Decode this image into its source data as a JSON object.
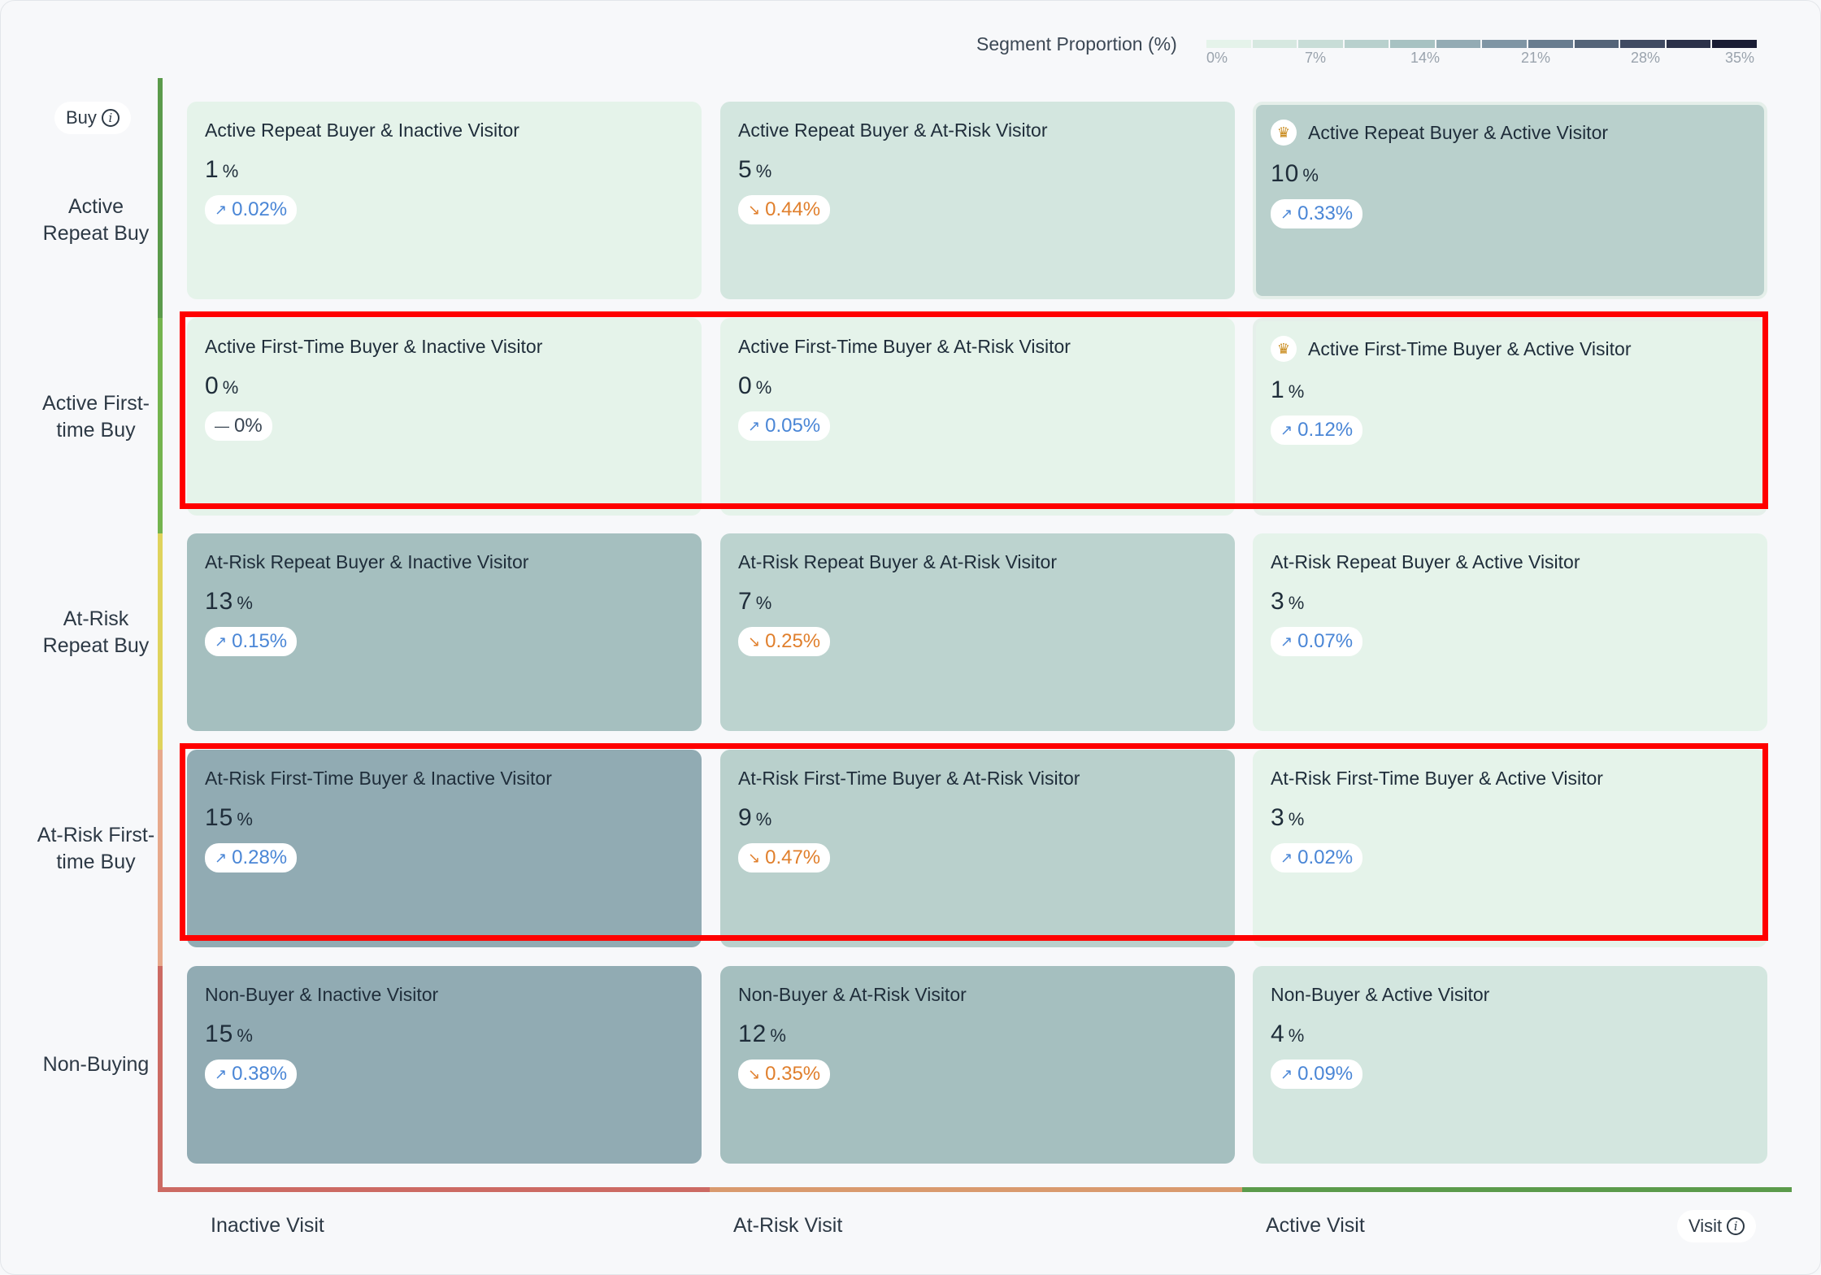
{
  "legend": {
    "title": "Segment Proportion (%)",
    "ticks": [
      "0%",
      "7%",
      "14%",
      "21%",
      "28%",
      "35%"
    ],
    "colors": [
      "#e5f3ea",
      "#d6e8e0",
      "#c8ddd7",
      "#b8d0cd",
      "#a7c2c2",
      "#93abb4",
      "#7f95a4",
      "#687c8f",
      "#546478",
      "#3f4a62",
      "#2b3149",
      "#191c34"
    ]
  },
  "buy_pill": {
    "label": "Buy",
    "icon": "info-icon"
  },
  "visit_pill": {
    "label": "Visit",
    "icon": "info-icon"
  },
  "rows": [
    {
      "label": "Active Repeat Buy",
      "axis_color": "#5b9b4b"
    },
    {
      "label": "Active First-time Buy",
      "axis_color": "#74b44e"
    },
    {
      "label": "At-Risk Repeat Buy",
      "axis_color": "#dfd35c"
    },
    {
      "label": "At-Risk First-time Buy",
      "axis_color": "#e7a98c"
    },
    {
      "label": "Non-Buying",
      "axis_color": "#cc6a63"
    }
  ],
  "columns": [
    {
      "label": "Inactive Visit",
      "axis_color": "#cc6a63"
    },
    {
      "label": "At-Risk Visit",
      "axis_color": "#d99a6e"
    },
    {
      "label": "Active Visit",
      "axis_color": "#5b9b4b"
    }
  ],
  "cells": [
    {
      "title": "Active Repeat Buyer & Inactive Visitor",
      "value": "1",
      "unit": "%",
      "trend": "up",
      "change": "0.02%",
      "crown": false,
      "bg": "#e5f3ea"
    },
    {
      "title": "Active Repeat Buyer & At-Risk Visitor",
      "value": "5",
      "unit": "%",
      "trend": "down",
      "change": "0.44%",
      "crown": false,
      "bg": "#d3e6df"
    },
    {
      "title": "Active Repeat Buyer & Active Visitor",
      "value": "10",
      "unit": "%",
      "trend": "up",
      "change": "0.33%",
      "crown": true,
      "bg": "#b9d0cc"
    },
    {
      "title": "Active First-Time Buyer & Inactive Visitor",
      "value": "0",
      "unit": "%",
      "trend": "flat",
      "change": "0%",
      "crown": false,
      "bg": "#e5f3ea"
    },
    {
      "title": "Active First-Time Buyer & At-Risk Visitor",
      "value": "0",
      "unit": "%",
      "trend": "up",
      "change": "0.05%",
      "crown": false,
      "bg": "#e5f3ea"
    },
    {
      "title": "Active First-Time Buyer & Active Visitor",
      "value": "1",
      "unit": "%",
      "trend": "up",
      "change": "0.12%",
      "crown": true,
      "bg": "#e5f3ea"
    },
    {
      "title": "At-Risk Repeat Buyer & Inactive Visitor",
      "value": "13",
      "unit": "%",
      "trend": "up",
      "change": "0.15%",
      "crown": false,
      "bg": "#a5bfbf"
    },
    {
      "title": "At-Risk Repeat Buyer & At-Risk Visitor",
      "value": "7",
      "unit": "%",
      "trend": "down",
      "change": "0.25%",
      "crown": false,
      "bg": "#bcd3cf"
    },
    {
      "title": "At-Risk Repeat Buyer & Active Visitor",
      "value": "3",
      "unit": "%",
      "trend": "up",
      "change": "0.07%",
      "crown": false,
      "bg": "#e5f3ea"
    },
    {
      "title": "At-Risk First-Time Buyer & Inactive Visitor",
      "value": "15",
      "unit": "%",
      "trend": "up",
      "change": "0.28%",
      "crown": false,
      "bg": "#91abb3"
    },
    {
      "title": "At-Risk First-Time Buyer & At-Risk Visitor",
      "value": "9",
      "unit": "%",
      "trend": "down",
      "change": "0.47%",
      "crown": false,
      "bg": "#b9d0cc"
    },
    {
      "title": "At-Risk First-Time Buyer & Active Visitor",
      "value": "3",
      "unit": "%",
      "trend": "up",
      "change": "0.02%",
      "crown": false,
      "bg": "#e5f3ea"
    },
    {
      "title": "Non-Buyer & Inactive Visitor",
      "value": "15",
      "unit": "%",
      "trend": "up",
      "change": "0.38%",
      "crown": false,
      "bg": "#91abb3"
    },
    {
      "title": "Non-Buyer & At-Risk Visitor",
      "value": "12",
      "unit": "%",
      "trend": "down",
      "change": "0.35%",
      "crown": false,
      "bg": "#a5bfbf"
    },
    {
      "title": "Non-Buyer & Active Visitor",
      "value": "4",
      "unit": "%",
      "trend": "up",
      "change": "0.09%",
      "crown": false,
      "bg": "#d3e6df"
    }
  ],
  "highlighted_rows": [
    1,
    3
  ],
  "highlight_color": "#ff0000"
}
